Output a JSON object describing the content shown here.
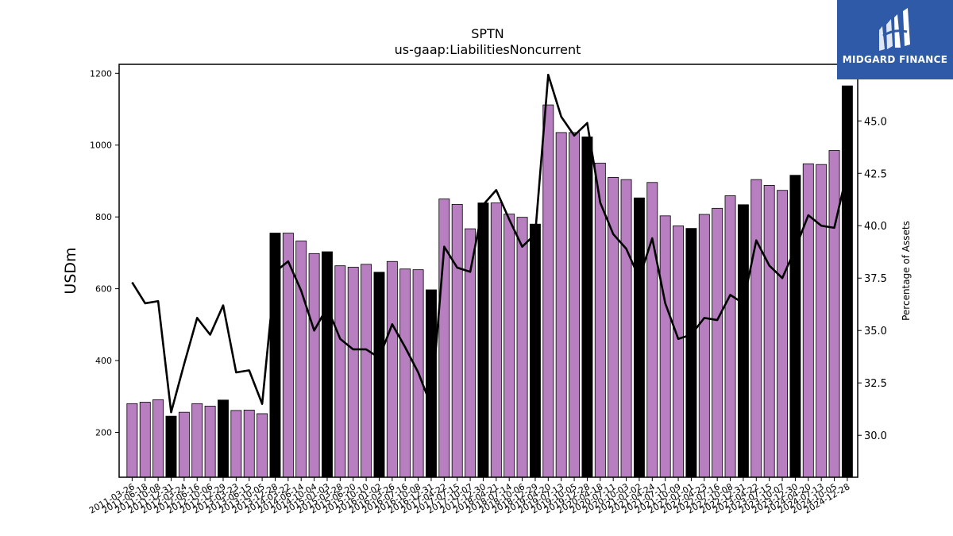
{
  "header": {
    "title": "SPTN",
    "subtitle": "us-gaap:LiabilitiesNoncurrent"
  },
  "logo": {
    "text": "MIDGARD FINANCE",
    "background_color": "#2e5aa8"
  },
  "chart_data": {
    "type": "bar",
    "title": "SPTN",
    "subtitle": "us-gaap:LiabilitiesNoncurrent",
    "ylabel": "USDm",
    "y2label": "Percentage of Assets",
    "ylim": [
      75,
      1225
    ],
    "y2lim": [
      28.0,
      47.7
    ],
    "yticks": [
      200,
      400,
      600,
      800,
      1000,
      1200
    ],
    "y2ticks": [
      "30.0",
      "32.5",
      "35.0",
      "37.5",
      "40.0",
      "42.5",
      "45.0"
    ],
    "colors": {
      "quarter_bar": "#b87fc0",
      "annual_bar": "#000000",
      "line": "#000000"
    },
    "categories": [
      "2011-03-26",
      "2011-06-18",
      "2011-10-08",
      "2011-12-31",
      "2012-03-24",
      "2012-06-16",
      "2012-10-06",
      "2012-12-29",
      "2013-03-23",
      "2013-06-15",
      "2013-10-05",
      "2013-12-28",
      "2014-03-22",
      "2014-06-14",
      "2014-10-04",
      "2015-01-03",
      "2015-03-28",
      "2015-06-20",
      "2015-10-10",
      "2016-01-02",
      "2016-03-26",
      "2016-07-16",
      "2016-10-08",
      "2016-12-31",
      "2017-04-22",
      "2017-07-15",
      "2017-10-07",
      "2017-12-30",
      "2018-04-21",
      "2018-07-14",
      "2018-10-06",
      "2018-12-29",
      "2019-04-20",
      "2019-07-13",
      "2019-10-05",
      "2019-12-28",
      "2020-04-18",
      "2020-07-11",
      "2020-10-03",
      "2021-01-02",
      "2021-04-24",
      "2021-07-17",
      "2021-10-09",
      "2022-01-01",
      "2022-04-23",
      "2022-07-16",
      "2022-10-08",
      "2022-12-31",
      "2023-04-22",
      "2023-07-15",
      "2023-10-07",
      "2023-12-30",
      "2024-04-20",
      "2024-07-13",
      "2024-10-05",
      "2024-12-28"
    ],
    "tick_labels": [
      "2011-03-26",
      "2011-06-18",
      "2011-10-08",
      "2011-12-31",
      "2012-03-24",
      "2012-06-16",
      "2012-10-06",
      "2012-12-29",
      "2013-03-23",
      "2013-06-15",
      "2013-10-05",
      "2013-12-28",
      "2014-03-22",
      "2014-06-14",
      "2014-10-04",
      "2015-01-03",
      "2015-03-28",
      "2015-06-20",
      "2015-10-10",
      "2016-01-02",
      "2016-03-26",
      "2016-07-16",
      "2016-10-08",
      "2016-12-31",
      "2017-04-22",
      "2017-07-15",
      "2017-10-07",
      "2017-12-30",
      "2018-04-21",
      "2018-07-14",
      "2018-10-06",
      "2018-12-29",
      "2019-04-20",
      "2019-07-13",
      "2019-10-05",
      "2019-12-28",
      "2020-04-18",
      "2020-07-11",
      "2020-10-03",
      "2021-01-02",
      "2021-04-24",
      "2021-07-17",
      "2021-10-09",
      "2022-01-01",
      "2022-04-23",
      "2022-07-16",
      "2022-10-08",
      "2022-12-31",
      "2023-04-22",
      "2023-07-15",
      "2023-10-07",
      "2023-12-30",
      "2024-04-20",
      "2024-07-13",
      "2024-10-05",
      "2024-12-28"
    ],
    "series": [
      {
        "kind": "bar",
        "axis": "left",
        "values": [
          280,
          284,
          291,
          245,
          256,
          280,
          273,
          290,
          261,
          262,
          252,
          755,
          755,
          733,
          698,
          703,
          664,
          660,
          668,
          646,
          676,
          655,
          653,
          597,
          850,
          835,
          767,
          839,
          839,
          808,
          799,
          780,
          1112,
          1035,
          1035,
          1023,
          950,
          910,
          904,
          853,
          896,
          803,
          775,
          768,
          807,
          824,
          859,
          834,
          904,
          888,
          874,
          916,
          948,
          946,
          985,
          1165
        ],
        "annual": [
          false,
          false,
          false,
          true,
          false,
          false,
          false,
          true,
          false,
          false,
          false,
          true,
          false,
          false,
          false,
          true,
          false,
          false,
          false,
          true,
          false,
          false,
          false,
          true,
          false,
          false,
          false,
          true,
          false,
          false,
          false,
          true,
          false,
          false,
          false,
          true,
          false,
          false,
          false,
          true,
          false,
          false,
          false,
          true,
          false,
          false,
          false,
          true,
          false,
          false,
          false,
          true,
          false,
          false,
          false,
          true
        ]
      },
      {
        "kind": "line",
        "axis": "right",
        "values": [
          37.3,
          36.3,
          36.4,
          31.1,
          33.4,
          35.6,
          34.8,
          36.2,
          33.0,
          33.1,
          31.5,
          37.8,
          38.3,
          36.9,
          35.0,
          36.1,
          34.6,
          34.1,
          34.1,
          33.7,
          35.3,
          34.2,
          33.0,
          31.4,
          39.0,
          38.0,
          37.8,
          41.0,
          41.7,
          40.3,
          39.0,
          39.6,
          47.2,
          45.2,
          44.3,
          44.9,
          41.1,
          39.6,
          38.9,
          37.5,
          39.4,
          36.3,
          34.6,
          34.8,
          35.6,
          35.5,
          36.7,
          36.3,
          39.3,
          38.1,
          37.5,
          38.9,
          40.5,
          40.0,
          39.9,
          42.6
        ]
      }
    ]
  }
}
